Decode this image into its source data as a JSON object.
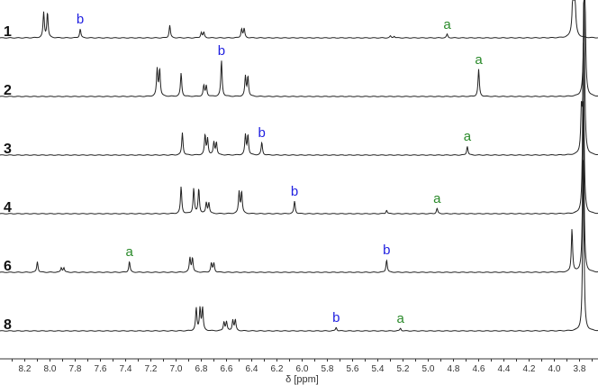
{
  "chart_data": {
    "type": "line",
    "title": "",
    "xlabel": "δ [ppm]",
    "xlim": [
      8.35,
      3.72
    ],
    "x_reversed": true,
    "ticks": [
      "8.2",
      "8.0",
      "7.8",
      "7.6",
      "7.4",
      "7.2",
      "7.0",
      "6.8",
      "6.6",
      "6.4",
      "6.2",
      "6.0",
      "5.8",
      "5.6",
      "5.4",
      "5.2",
      "5.0",
      "4.8",
      "4.6",
      "4.4",
      "4.2",
      "4.0",
      "3.8"
    ],
    "colors": {
      "a": "#2a8a2a",
      "b": "#2020e0",
      "trace": "#222222"
    },
    "series": [
      {
        "name": "1",
        "peaks": [
          [
            8.05,
            28
          ],
          [
            8.02,
            28
          ],
          [
            7.76,
            10
          ],
          [
            7.05,
            14
          ],
          [
            6.8,
            6
          ],
          [
            6.78,
            6
          ],
          [
            6.48,
            10
          ],
          [
            6.46,
            10
          ],
          [
            5.3,
            2
          ],
          [
            5.27,
            2
          ],
          [
            4.85,
            4
          ],
          [
            3.845,
            200
          ]
        ],
        "labels": [
          {
            "text": "b",
            "ppm": 7.76,
            "type": "b"
          },
          {
            "text": "a",
            "ppm": 4.85,
            "type": "a"
          }
        ]
      },
      {
        "name": "2",
        "peaks": [
          [
            7.15,
            30
          ],
          [
            7.13,
            30
          ],
          [
            6.96,
            26
          ],
          [
            6.78,
            12
          ],
          [
            6.76,
            12
          ],
          [
            6.64,
            40
          ],
          [
            6.45,
            22
          ],
          [
            6.43,
            22
          ],
          [
            4.6,
            30
          ],
          [
            3.76,
            200
          ]
        ],
        "labels": [
          {
            "text": "b",
            "ppm": 6.64,
            "type": "b"
          },
          {
            "text": "a",
            "ppm": 4.6,
            "type": "a"
          }
        ]
      },
      {
        "name": "3",
        "peaks": [
          [
            6.95,
            25
          ],
          [
            6.77,
            22
          ],
          [
            6.75,
            18
          ],
          [
            6.7,
            14
          ],
          [
            6.68,
            14
          ],
          [
            6.45,
            22
          ],
          [
            6.43,
            22
          ],
          [
            6.32,
            14
          ],
          [
            4.69,
            10
          ],
          [
            3.785,
            45
          ],
          [
            3.765,
            200
          ]
        ],
        "labels": [
          {
            "text": "b",
            "ppm": 6.32,
            "type": "b"
          },
          {
            "text": "a",
            "ppm": 4.69,
            "type": "a"
          }
        ]
      },
      {
        "name": "4",
        "peaks": [
          [
            6.96,
            30
          ],
          [
            6.86,
            28
          ],
          [
            6.82,
            28
          ],
          [
            6.76,
            12
          ],
          [
            6.74,
            12
          ],
          [
            6.5,
            24
          ],
          [
            6.48,
            24
          ],
          [
            6.06,
            14
          ],
          [
            5.33,
            4
          ],
          [
            4.93,
            6
          ],
          [
            3.77,
            200
          ]
        ],
        "labels": [
          {
            "text": "b",
            "ppm": 6.06,
            "type": "b"
          },
          {
            "text": "a",
            "ppm": 4.93,
            "type": "a"
          }
        ]
      },
      {
        "name": "6",
        "peaks": [
          [
            8.1,
            12
          ],
          [
            7.91,
            5
          ],
          [
            7.89,
            5
          ],
          [
            7.37,
            12
          ],
          [
            6.89,
            16
          ],
          [
            6.87,
            16
          ],
          [
            6.72,
            10
          ],
          [
            6.7,
            10
          ],
          [
            5.33,
            14
          ],
          [
            3.86,
            48
          ],
          [
            3.77,
            200
          ]
        ],
        "labels": [
          {
            "text": "a",
            "ppm": 7.37,
            "type": "a"
          },
          {
            "text": "b",
            "ppm": 5.33,
            "type": "b"
          }
        ]
      },
      {
        "name": "8",
        "peaks": [
          [
            6.84,
            25
          ],
          [
            6.81,
            25
          ],
          [
            6.79,
            25
          ],
          [
            6.62,
            10
          ],
          [
            6.6,
            10
          ],
          [
            6.55,
            12
          ],
          [
            6.53,
            12
          ],
          [
            5.73,
            4
          ],
          [
            5.22,
            3
          ],
          [
            3.77,
            200
          ]
        ],
        "labels": [
          {
            "text": "b",
            "ppm": 5.73,
            "type": "b"
          },
          {
            "text": "a",
            "ppm": 5.22,
            "type": "a"
          }
        ]
      }
    ]
  }
}
